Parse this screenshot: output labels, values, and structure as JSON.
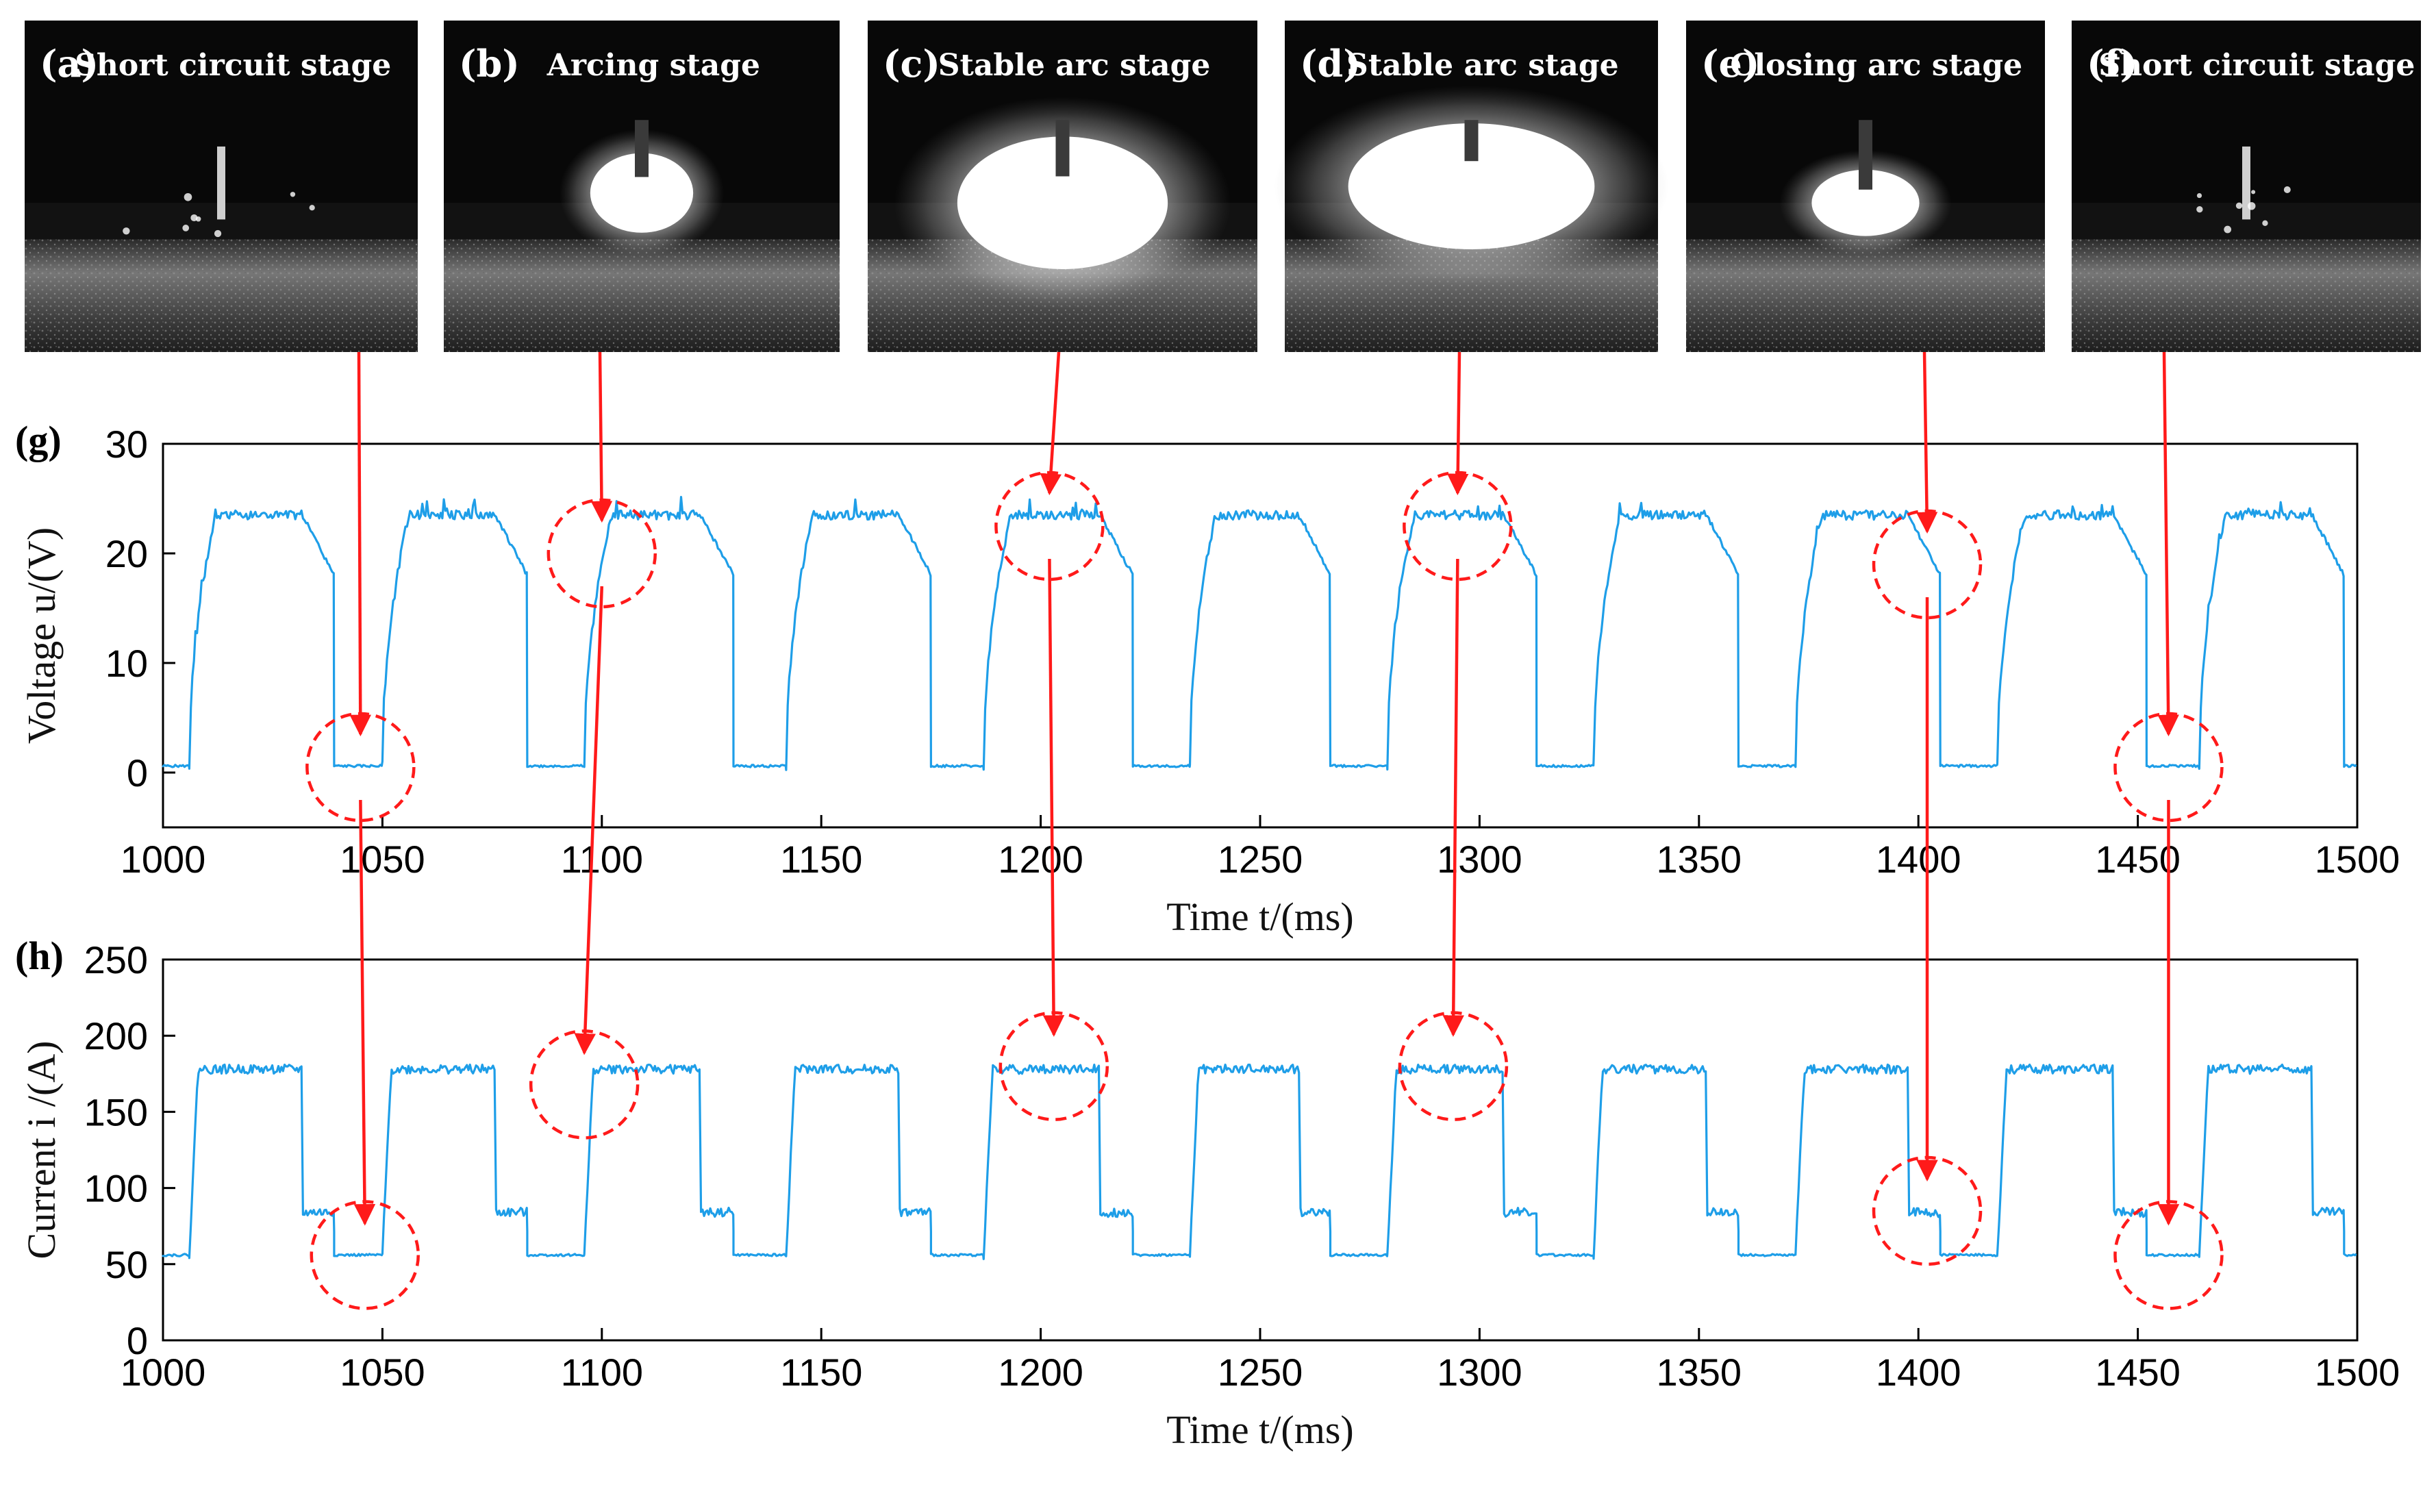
{
  "colors": {
    "trace": "#1e9ee8",
    "annotation": "#ff1a1a",
    "frame": "#000000"
  },
  "photo_panels": [
    {
      "letter": "(a)",
      "title": "Short circuit stage",
      "scene": "short"
    },
    {
      "letter": "(b)",
      "title": "Arcing stage",
      "scene": "arcing"
    },
    {
      "letter": "(c)",
      "title": "Stable arc stage",
      "scene": "stable-large"
    },
    {
      "letter": "(d)",
      "title": "Stable arc stage",
      "scene": "stable-wide"
    },
    {
      "letter": "(e)",
      "title": "Closing arc stage",
      "scene": "closing"
    },
    {
      "letter": "(f)",
      "title": "Short circuit stage",
      "scene": "short"
    }
  ],
  "chart_data": [
    {
      "id": "g",
      "label": "(g)",
      "type": "line",
      "xlabel": "Time t/(ms)",
      "ylabel": "Voltage u/(V)",
      "xlim": [
        1000,
        1500
      ],
      "ylim": [
        -5,
        30
      ],
      "xticks": [
        1000,
        1050,
        1100,
        1150,
        1200,
        1250,
        1300,
        1350,
        1400,
        1450,
        1500
      ],
      "yticks": [
        0,
        10,
        20,
        30
      ],
      "levels": {
        "arc_plateau": 23.5,
        "arc_tail": 18,
        "short_circuit": 0.6
      },
      "cycles": [
        {
          "arc_start": 1006,
          "arc_end": 1039,
          "short_end": 1050
        },
        {
          "arc_start": 1050,
          "arc_end": 1083,
          "short_end": 1096
        },
        {
          "arc_start": 1096,
          "arc_end": 1130,
          "short_end": 1142
        },
        {
          "arc_start": 1142,
          "arc_end": 1175,
          "short_end": 1187
        },
        {
          "arc_start": 1187,
          "arc_end": 1221,
          "short_end": 1234
        },
        {
          "arc_start": 1234,
          "arc_end": 1266,
          "short_end": 1279
        },
        {
          "arc_start": 1279,
          "arc_end": 1313,
          "short_end": 1326
        },
        {
          "arc_start": 1326,
          "arc_end": 1359,
          "short_end": 1372
        },
        {
          "arc_start": 1372,
          "arc_end": 1405,
          "short_end": 1418
        },
        {
          "arc_start": 1418,
          "arc_end": 1452,
          "short_end": 1464
        },
        {
          "arc_start": 1464,
          "arc_end": 1497,
          "short_end": 1500
        }
      ],
      "markers": [
        {
          "x": 1045,
          "y": 0.5
        },
        {
          "x": 1100,
          "y": 20.0
        },
        {
          "x": 1202,
          "y": 22.5
        },
        {
          "x": 1295,
          "y": 22.5
        },
        {
          "x": 1402,
          "y": 19.0
        },
        {
          "x": 1457,
          "y": 0.5
        }
      ]
    },
    {
      "id": "h",
      "label": "(h)",
      "type": "line",
      "xlabel": "Time t/(ms)",
      "ylabel": "Current i /(A)",
      "xlim": [
        1000,
        1500
      ],
      "ylim": [
        0,
        250
      ],
      "xticks": [
        1000,
        1050,
        1100,
        1150,
        1200,
        1250,
        1300,
        1350,
        1400,
        1450,
        1500
      ],
      "yticks": [
        0,
        50,
        100,
        150,
        200,
        250
      ],
      "levels": {
        "arc_plateau": 178,
        "arc_tail": 84,
        "short_circuit": 56
      },
      "cycles": [
        {
          "arc_start": 1006,
          "arc_end": 1039,
          "short_end": 1050
        },
        {
          "arc_start": 1050,
          "arc_end": 1083,
          "short_end": 1096
        },
        {
          "arc_start": 1096,
          "arc_end": 1130,
          "short_end": 1142
        },
        {
          "arc_start": 1142,
          "arc_end": 1175,
          "short_end": 1187
        },
        {
          "arc_start": 1187,
          "arc_end": 1221,
          "short_end": 1234
        },
        {
          "arc_start": 1234,
          "arc_end": 1266,
          "short_end": 1279
        },
        {
          "arc_start": 1279,
          "arc_end": 1313,
          "short_end": 1326
        },
        {
          "arc_start": 1326,
          "arc_end": 1359,
          "short_end": 1372
        },
        {
          "arc_start": 1372,
          "arc_end": 1405,
          "short_end": 1418
        },
        {
          "arc_start": 1418,
          "arc_end": 1452,
          "short_end": 1464
        },
        {
          "arc_start": 1464,
          "arc_end": 1497,
          "short_end": 1500
        }
      ],
      "markers": [
        {
          "x": 1046,
          "y": 56
        },
        {
          "x": 1096,
          "y": 168
        },
        {
          "x": 1203,
          "y": 180
        },
        {
          "x": 1294,
          "y": 180
        },
        {
          "x": 1402,
          "y": 85
        },
        {
          "x": 1457,
          "y": 56
        }
      ]
    }
  ]
}
